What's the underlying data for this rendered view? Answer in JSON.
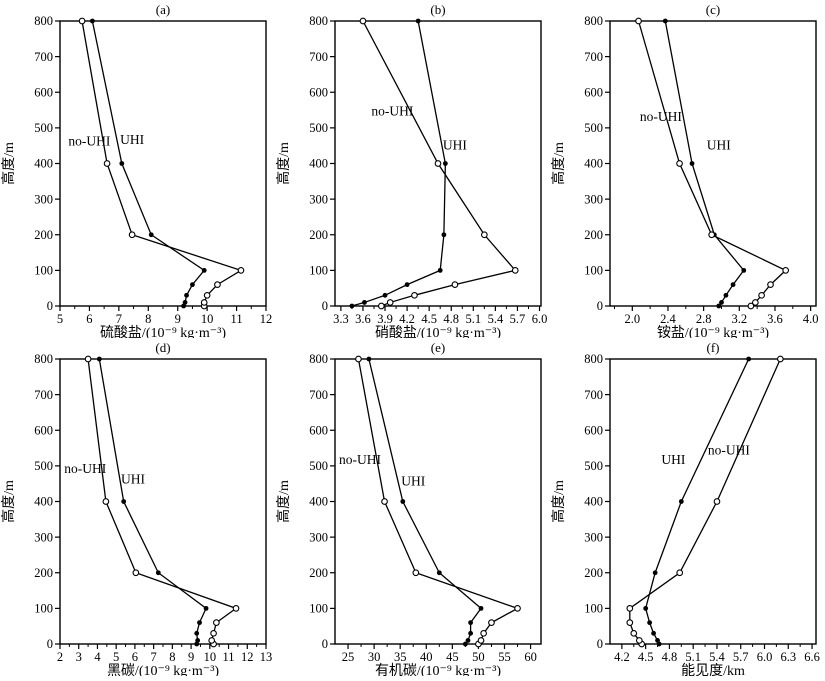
{
  "figure": {
    "background": "#ffffff",
    "ink": "#000000",
    "ylabel": "高度/m",
    "ymin": 0,
    "ymax": 800,
    "yticks": [
      0,
      100,
      200,
      300,
      400,
      500,
      600,
      700,
      800
    ],
    "ytick_labels": [
      "0",
      "100",
      "200",
      "300",
      "400",
      "500",
      "600",
      "700",
      "800"
    ],
    "heights_m": [
      0,
      10,
      30,
      60,
      100,
      200,
      400,
      800
    ],
    "legend": {
      "uhi_label": "UHI",
      "no_uhi_label": "no-UHI",
      "uhi_marker": "filled-circle",
      "no_uhi_marker": "open-circle"
    }
  },
  "chart_data": [
    {
      "id": "a",
      "type": "line",
      "title": "(a)",
      "xlabel": "硫酸盐/(10⁻⁹ kg·m⁻³)",
      "xmin": 5,
      "xmax": 12,
      "xticks": [
        5,
        6,
        7,
        8,
        9,
        10,
        11,
        12
      ],
      "xtick_labels": [
        "5",
        "6",
        "7",
        "8",
        "9",
        "10",
        "11",
        "12"
      ],
      "series": [
        {
          "name": "UHI",
          "marker": "filled",
          "values": [
            9.2,
            9.25,
            9.3,
            9.5,
            9.9,
            8.1,
            7.1,
            6.1
          ]
        },
        {
          "name": "no-UHI",
          "marker": "open",
          "values": [
            9.9,
            9.9,
            10.0,
            10.35,
            11.15,
            7.45,
            6.6,
            5.75
          ]
        }
      ],
      "annotations": [
        {
          "text": "no-UHI",
          "x": 6.0,
          "y": 450
        },
        {
          "text": "UHI",
          "x": 7.45,
          "y": 455
        }
      ]
    },
    {
      "id": "b",
      "type": "line",
      "title": "(b)",
      "xlabel": "硝酸盐/(10⁻⁹ kg·m⁻³)",
      "xmin": 3.22,
      "xmax": 6.02,
      "xticks": [
        3.3,
        3.6,
        3.9,
        4.2,
        4.5,
        4.8,
        5.1,
        5.4,
        5.7,
        6.0
      ],
      "xtick_labels": [
        "3.3",
        "3.6",
        "3.9",
        "4.2",
        "4.5",
        "4.8",
        "5.1",
        "5.4",
        "5.7",
        "6.0"
      ],
      "series": [
        {
          "name": "UHI",
          "marker": "filled",
          "values": [
            3.45,
            3.62,
            3.9,
            4.2,
            4.65,
            4.7,
            4.72,
            4.35
          ]
        },
        {
          "name": "no-UHI",
          "marker": "open",
          "values": [
            3.85,
            3.97,
            4.3,
            4.85,
            5.67,
            5.25,
            4.62,
            3.6
          ]
        }
      ],
      "annotations": [
        {
          "text": "no-UHI",
          "x": 4.0,
          "y": 535
        },
        {
          "text": "UHI",
          "x": 4.85,
          "y": 440
        }
      ]
    },
    {
      "id": "c",
      "type": "line",
      "title": "(c)",
      "xlabel": "铵盐/(10⁻⁹ kg·m⁻³)",
      "xmin": 1.75,
      "xmax": 4.06,
      "xticks": [
        2.0,
        2.4,
        2.8,
        3.2,
        3.6,
        4.0
      ],
      "xtick_labels": [
        "2.0",
        "2.4",
        "2.8",
        "3.2",
        "3.6",
        "4.0"
      ],
      "series": [
        {
          "name": "UHI",
          "marker": "filled",
          "values": [
            2.97,
            3.0,
            3.05,
            3.13,
            3.25,
            2.92,
            2.67,
            2.37
          ]
        },
        {
          "name": "no-UHI",
          "marker": "open",
          "values": [
            3.33,
            3.38,
            3.45,
            3.55,
            3.72,
            2.89,
            2.53,
            2.07
          ]
        }
      ],
      "annotations": [
        {
          "text": "no-UHI",
          "x": 2.32,
          "y": 520
        },
        {
          "text": "UHI",
          "x": 2.97,
          "y": 440
        }
      ]
    },
    {
      "id": "d",
      "type": "line",
      "title": "(d)",
      "xlabel": "黑碳/(10⁻⁹ kg·m⁻³)",
      "xmin": 2,
      "xmax": 13,
      "xticks": [
        2,
        3,
        4,
        5,
        6,
        7,
        8,
        9,
        10,
        11,
        12,
        13
      ],
      "xtick_labels": [
        "2",
        "3",
        "4",
        "5",
        "6",
        "7",
        "8",
        "9",
        "10",
        "11",
        "12",
        "13"
      ],
      "series": [
        {
          "name": "UHI",
          "marker": "filled",
          "values": [
            9.3,
            9.35,
            9.3,
            9.45,
            9.8,
            7.25,
            5.4,
            4.1
          ]
        },
        {
          "name": "no-UHI",
          "marker": "open",
          "values": [
            10.2,
            10.1,
            10.2,
            10.35,
            11.4,
            6.05,
            4.45,
            3.5
          ]
        }
      ],
      "annotations": [
        {
          "text": "no-UHI",
          "x": 3.35,
          "y": 480
        },
        {
          "text": "UHI",
          "x": 5.9,
          "y": 450
        }
      ]
    },
    {
      "id": "e",
      "type": "line",
      "title": "(e)",
      "xlabel": "有机碳/(10⁻⁹ kg·m⁻³)",
      "xmin": 22.5,
      "xmax": 62,
      "xticks": [
        25,
        30,
        35,
        40,
        45,
        50,
        55,
        60
      ],
      "xtick_labels": [
        "25",
        "30",
        "35",
        "40",
        "45",
        "50",
        "55",
        "60"
      ],
      "series": [
        {
          "name": "UHI",
          "marker": "filled",
          "values": [
            47.5,
            48,
            48.5,
            48.5,
            50.5,
            42.5,
            35.5,
            29
          ]
        },
        {
          "name": "no-UHI",
          "marker": "open",
          "values": [
            50,
            50.5,
            51,
            52.5,
            57.5,
            38,
            32,
            27
          ]
        }
      ],
      "annotations": [
        {
          "text": "no-UHI",
          "x": 27.3,
          "y": 505
        },
        {
          "text": "UHI",
          "x": 37.5,
          "y": 445
        }
      ]
    },
    {
      "id": "f",
      "type": "line",
      "title": "(f)",
      "xlabel": "能见度/km",
      "xmin": 4.05,
      "xmax": 6.65,
      "xticks": [
        4.2,
        4.5,
        4.8,
        5.1,
        5.4,
        5.7,
        6.0,
        6.3,
        6.6
      ],
      "xtick_labels": [
        "4.2",
        "4.5",
        "4.8",
        "5.1",
        "5.4",
        "5.7",
        "6.0",
        "6.3",
        "6.6"
      ],
      "series": [
        {
          "name": "UHI",
          "marker": "filled",
          "values": [
            4.67,
            4.65,
            4.6,
            4.55,
            4.5,
            4.62,
            4.95,
            5.8
          ]
        },
        {
          "name": "no-UHI",
          "marker": "open",
          "values": [
            4.45,
            4.42,
            4.35,
            4.3,
            4.3,
            4.93,
            5.4,
            6.2
          ]
        }
      ],
      "annotations": [
        {
          "text": "UHI",
          "x": 4.85,
          "y": 505
        },
        {
          "text": "no-UHI",
          "x": 5.55,
          "y": 532
        }
      ]
    }
  ]
}
